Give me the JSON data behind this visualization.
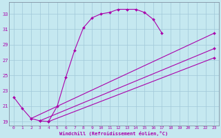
{
  "xlabel": "Windchill (Refroidissement éolien,°C)",
  "bg_color": "#c5e8f0",
  "grid_color": "#a0c8d8",
  "line_color": "#aa00aa",
  "xlim": [
    -0.5,
    23.5
  ],
  "ylim": [
    18.5,
    34.5
  ],
  "yticks": [
    19,
    21,
    23,
    25,
    27,
    29,
    31,
    33
  ],
  "xticks": [
    0,
    1,
    2,
    3,
    4,
    5,
    6,
    7,
    8,
    9,
    10,
    11,
    12,
    13,
    14,
    15,
    16,
    17,
    18,
    19,
    20,
    21,
    22,
    23
  ],
  "series": [
    {
      "x": [
        0,
        1,
        2,
        3,
        4,
        5,
        6,
        7,
        8,
        9,
        10,
        11,
        12,
        13,
        14,
        15,
        16,
        17
      ],
      "y": [
        22.2,
        20.7,
        19.4,
        19.1,
        19.0,
        21.0,
        24.8,
        28.3,
        31.2,
        32.5,
        33.0,
        33.2,
        33.6,
        33.6,
        33.6,
        33.2,
        32.3,
        30.5
      ]
    },
    {
      "x": [
        2,
        23
      ],
      "y": [
        19.4,
        30.5
      ]
    },
    {
      "x": [
        3,
        23
      ],
      "y": [
        19.1,
        28.5
      ]
    },
    {
      "x": [
        4,
        23
      ],
      "y": [
        19.0,
        27.3
      ]
    }
  ]
}
